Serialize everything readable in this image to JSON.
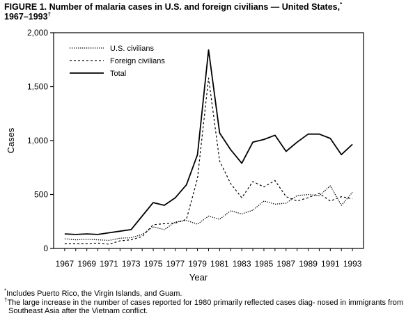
{
  "title": {
    "text": "FIGURE 1. Number of malaria cases in U.S. and foreign civilians — United States,",
    "mark1": "*",
    "text2": "1967–1993",
    "mark2": "†"
  },
  "chart_data": {
    "type": "line",
    "xlabel": "Year",
    "ylabel": "Cases",
    "xlim": [
      1966,
      1994
    ],
    "ylim": [
      0,
      2000
    ],
    "x": [
      1967,
      1968,
      1969,
      1970,
      1971,
      1972,
      1973,
      1974,
      1975,
      1976,
      1977,
      1978,
      1979,
      1980,
      1981,
      1982,
      1983,
      1984,
      1985,
      1986,
      1987,
      1988,
      1989,
      1990,
      1991,
      1992,
      1993
    ],
    "x_ticks": [
      1967,
      1969,
      1971,
      1973,
      1975,
      1977,
      1979,
      1981,
      1983,
      1985,
      1987,
      1989,
      1991,
      1993
    ],
    "x_tick_labels": [
      "1967",
      "1969",
      "1971",
      "1973",
      "1975",
      "1977",
      "1979",
      "1981",
      "1983",
      "1985",
      "1987",
      "1989",
      "1991",
      "1993"
    ],
    "y_ticks": [
      0,
      500,
      1000,
      1500,
      2000
    ],
    "y_tick_labels": [
      "0",
      "500",
      "1,000",
      "1,500",
      "2,000"
    ],
    "grid": false,
    "legend_position": "top-left",
    "series": [
      {
        "name": "U.S. civilians",
        "style": "dotted",
        "values": [
          90,
          80,
          85,
          80,
          75,
          95,
          100,
          130,
          200,
          175,
          245,
          260,
          225,
          300,
          270,
          350,
          320,
          355,
          440,
          410,
          420,
          490,
          500,
          490,
          580,
          400,
          520
        ]
      },
      {
        "name": "Foreign civilians",
        "style": "dashed",
        "values": [
          45,
          45,
          45,
          50,
          40,
          70,
          80,
          110,
          220,
          230,
          235,
          270,
          650,
          1580,
          810,
          600,
          470,
          620,
          570,
          630,
          480,
          440,
          470,
          510,
          440,
          480,
          460
        ]
      },
      {
        "name": "Total",
        "style": "solid",
        "values": [
          135,
          130,
          135,
          130,
          145,
          160,
          175,
          300,
          425,
          400,
          470,
          590,
          870,
          1840,
          1070,
          915,
          790,
          985,
          1010,
          1050,
          900,
          985,
          1060,
          1060,
          1020,
          870,
          965
        ]
      }
    ]
  },
  "footnotes": [
    {
      "mark": "*",
      "text": "Includes Puerto Rico, the Virgin Islands, and Guam."
    },
    {
      "mark": "†",
      "text": "The large increase in the number of cases reported for 1980 primarily reflected cases diag- nosed in immigrants from Southeast Asia after the Vietnam conflict."
    }
  ]
}
